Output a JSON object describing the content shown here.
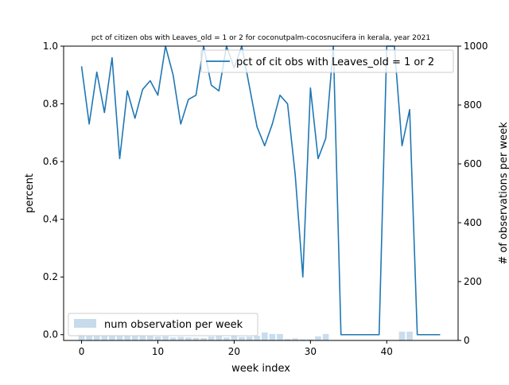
{
  "chart_data": {
    "type": "line",
    "title": "pct of citizen obs with Leaves_old = 1 or 2 for coconutpalm-cocosnucifera in kerala, year 2021",
    "xlabel": "week index",
    "ylabel": "percent",
    "y2label": "# of observations per week",
    "xlim": [
      -2.35,
      49.35
    ],
    "ylim": [
      -0.02,
      1.0
    ],
    "y2lim": [
      0,
      1000
    ],
    "xticks": [
      0,
      10,
      20,
      30,
      40
    ],
    "yticks": [
      0.0,
      0.2,
      0.4,
      0.6,
      0.8,
      1.0
    ],
    "y2ticks": [
      0,
      200,
      400,
      600,
      800,
      1000
    ],
    "line_series": {
      "name": "pct of cit obs with Leaves_old = 1 or 2",
      "color": "#1f77b4",
      "x": [
        0,
        1,
        2,
        3,
        4,
        5,
        6,
        7,
        8,
        9,
        10,
        11,
        12,
        13,
        14,
        15,
        16,
        17,
        18,
        19,
        20,
        21,
        22,
        23,
        24,
        25,
        26,
        27,
        28,
        29,
        30,
        31,
        32,
        33,
        34,
        35,
        36,
        37,
        38,
        39,
        40,
        41,
        42,
        43,
        44,
        45,
        46,
        47
      ],
      "y": [
        0.93,
        0.73,
        0.91,
        0.77,
        0.96,
        0.61,
        0.845,
        0.75,
        0.85,
        0.88,
        0.83,
        1.0,
        0.9,
        0.73,
        0.815,
        0.83,
        1.0,
        0.865,
        0.845,
        1.0,
        0.925,
        1.0,
        0.86,
        0.72,
        0.655,
        0.73,
        0.83,
        0.8,
        0.555,
        0.2,
        0.855,
        0.61,
        0.68,
        1.0,
        0.0,
        0.0,
        0.0,
        0.0,
        0.0,
        0.0,
        1.0,
        1.0,
        0.655,
        0.78,
        0.0,
        0.0,
        0.0,
        0.0
      ]
    },
    "bar_series": {
      "name": "num observation per week",
      "color": "#c6dbec",
      "x": [
        0,
        1,
        2,
        3,
        4,
        5,
        6,
        7,
        8,
        9,
        10,
        11,
        12,
        13,
        14,
        15,
        16,
        17,
        18,
        19,
        20,
        21,
        22,
        23,
        24,
        25,
        26,
        27,
        28,
        29,
        30,
        31,
        32,
        33,
        34,
        35,
        36,
        37,
        38,
        39,
        40,
        41,
        42,
        43,
        44,
        45,
        46,
        47
      ],
      "values": [
        20,
        18,
        18,
        18,
        17,
        18,
        17,
        17,
        18,
        17,
        13,
        14,
        10,
        12,
        10,
        9,
        8,
        13,
        17,
        10,
        16,
        12,
        13,
        16,
        27,
        22,
        22,
        5,
        7,
        4,
        4,
        14,
        22,
        0,
        0,
        0,
        0,
        0,
        0,
        0,
        0,
        0,
        30,
        30,
        0,
        0,
        0,
        0
      ]
    },
    "legend_line_position": "upper-right",
    "legend_bar_position": "lower-left",
    "grid": false
  }
}
